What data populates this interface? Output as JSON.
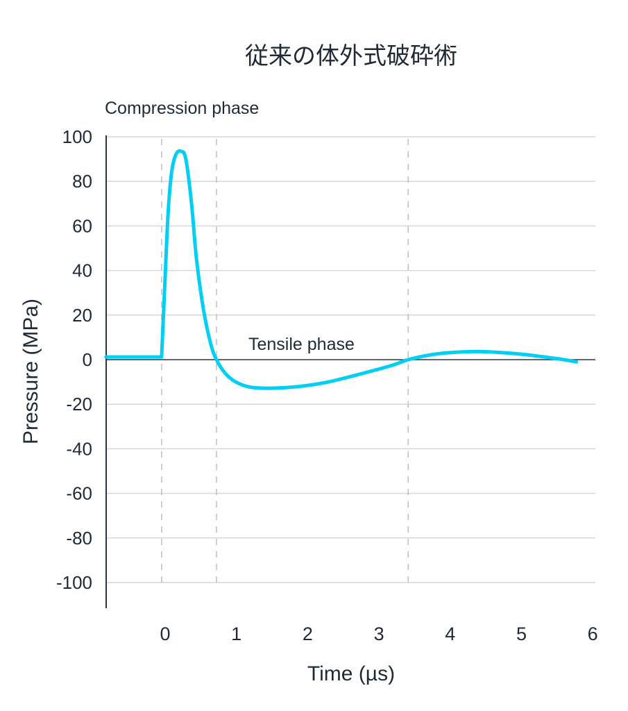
{
  "chart_data": {
    "type": "line",
    "title": "従来の体外式破砕術",
    "xlabel": "Time (µs)",
    "ylabel": "Pressure (MPa)",
    "xlim": [
      -0.82,
      6.1
    ],
    "ylim": [
      -100,
      100
    ],
    "x_ticks": [
      0,
      1,
      2,
      3,
      4,
      5,
      6
    ],
    "y_ticks": [
      100,
      80,
      60,
      40,
      20,
      0,
      -20,
      -40,
      -60,
      -80,
      -100
    ],
    "grid": {
      "horizontal": true,
      "vertical": false
    },
    "line_color": "#00CFF5",
    "annotations": [
      {
        "text": "Compression phase"
      },
      {
        "text": "Tensile phase"
      }
    ],
    "phase_boundaries_x": [
      -0.04,
      0.73,
      3.42
    ],
    "series": [
      {
        "x": [
          -0.82,
          -0.04,
          0.0,
          0.05,
          0.1,
          0.16,
          0.23,
          0.3,
          0.38,
          0.45,
          0.55,
          0.65,
          0.73,
          0.85,
          1.0,
          1.2,
          1.5,
          1.9,
          2.3,
          2.8,
          3.2,
          3.42,
          3.8,
          4.2,
          4.5,
          5.0,
          5.5,
          5.78
        ],
        "y": [
          1.2,
          1.2,
          30,
          65,
          84,
          92,
          93.5,
          90,
          70,
          45,
          22,
          7,
          0,
          -6,
          -10,
          -12.3,
          -12.8,
          -12,
          -10,
          -6,
          -2.5,
          0,
          2.5,
          3.5,
          3.6,
          2.5,
          0.5,
          -1
        ]
      }
    ]
  }
}
